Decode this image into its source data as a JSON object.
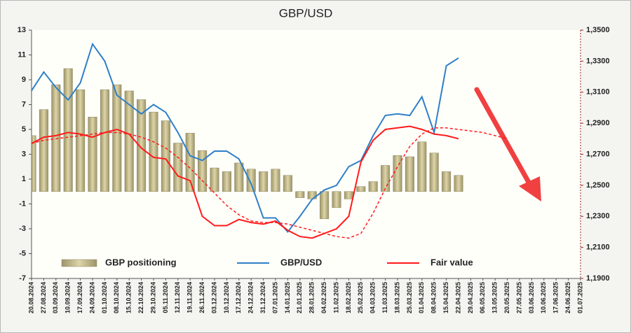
{
  "chart_data": {
    "type": "combo",
    "title": "GBP/USD",
    "categories": [
      "20.08.2024",
      "27.08.2024",
      "03.09.2024",
      "10.09.2024",
      "17.09.2024",
      "24.09.2024",
      "01.10.2024",
      "08.10.2024",
      "15.10.2024",
      "22.10.2024",
      "29.10.2024",
      "05.11.2024",
      "12.11.2024",
      "19.11.2024",
      "26.11.2024",
      "03.12.2024",
      "10.12.2024",
      "17.12.2024",
      "24.12.2024",
      "31.12.2024",
      "07.01.2025",
      "14.01.2025",
      "21.01.2025",
      "28.01.2025",
      "04.02.2025",
      "11.02.2025",
      "18.02.2025",
      "25.02.2025",
      "04.03.2025",
      "11.03.2025",
      "18.03.2025",
      "25.03.2025",
      "01.04.2025",
      "08.04.2025",
      "15.04.2025",
      "22.04.2025",
      "29.04.2025",
      "06.05.2025",
      "13.05.2025",
      "20.05.2025",
      "27.05.2025",
      "03.06.2025",
      "10.06.2025",
      "17.06.2025",
      "24.06.2025",
      "01.07.2025"
    ],
    "series": [
      {
        "name": "GBP positioning",
        "type": "bar",
        "axis": "y",
        "color": "#c2b98a",
        "values": [
          4.5,
          6.6,
          8.6,
          9.9,
          8.2,
          6.0,
          8.2,
          8.6,
          8.1,
          7.4,
          6.4,
          5.7,
          3.9,
          4.7,
          3.3,
          1.9,
          1.6,
          2.3,
          1.8,
          1.6,
          1.8,
          1.3,
          -0.5,
          -0.6,
          -2.2,
          -1.3,
          -0.6,
          0.4,
          0.8,
          2.1,
          2.9,
          2.8,
          4.0,
          3.1,
          1.6,
          1.3,
          null,
          null,
          null,
          null,
          null,
          null,
          null,
          null,
          null,
          null
        ]
      },
      {
        "name": "GBP/USD",
        "type": "line",
        "axis": "y2",
        "color": "#2f7fc8",
        "values": [
          1.311,
          1.323,
          1.313,
          1.305,
          1.316,
          1.341,
          1.33,
          1.308,
          1.302,
          1.296,
          1.302,
          1.297,
          1.284,
          1.269,
          1.266,
          1.272,
          1.272,
          1.267,
          1.251,
          1.229,
          1.229,
          1.22,
          1.23,
          1.241,
          1.247,
          1.25,
          1.262,
          1.266,
          1.282,
          1.295,
          1.296,
          1.295,
          1.307,
          1.284,
          1.327,
          1.332,
          null,
          null,
          null,
          null,
          null,
          null,
          null,
          null,
          null,
          null
        ]
      },
      {
        "name": "Fair value",
        "type": "line",
        "axis": "y2",
        "color": "#ff1a1a",
        "values": [
          1.277,
          1.281,
          1.282,
          1.284,
          1.283,
          1.281,
          1.284,
          1.286,
          1.283,
          1.274,
          1.268,
          1.267,
          1.256,
          1.253,
          1.23,
          1.224,
          1.224,
          1.228,
          1.226,
          1.225,
          1.227,
          1.221,
          1.217,
          1.216,
          1.219,
          1.222,
          1.23,
          1.265,
          1.279,
          1.286,
          1.287,
          1.288,
          1.286,
          1.283,
          1.282,
          1.28,
          null,
          null,
          null,
          null,
          null,
          null,
          null,
          null,
          null,
          null
        ]
      },
      {
        "type": "line",
        "axis": "y2",
        "color": "#ff1a1a",
        "dashed": true,
        "values": [
          1.277,
          1.279,
          1.28,
          1.281,
          1.282,
          1.283,
          1.284,
          1.284,
          1.283,
          1.281,
          1.278,
          1.274,
          1.268,
          1.261,
          1.253,
          1.245,
          1.237,
          1.231,
          1.227,
          1.226,
          1.226,
          1.225,
          1.223,
          1.221,
          1.219,
          1.217,
          1.216,
          1.219,
          1.232,
          1.248,
          1.262,
          1.275,
          1.283,
          1.287,
          1.287,
          1.286,
          1.285,
          1.284,
          1.282,
          1.28,
          null,
          null,
          null,
          null,
          null,
          null
        ]
      }
    ],
    "ylim": [
      -7,
      13
    ],
    "yticks": [
      -7,
      -5,
      -3,
      -1,
      1,
      3,
      5,
      7,
      9,
      11,
      13
    ],
    "y2lim": [
      1.19,
      1.35
    ],
    "y2ticks": [
      {
        "value": 1.19,
        "label": "1,1900"
      },
      {
        "value": 1.21,
        "label": "1,2100"
      },
      {
        "value": 1.23,
        "label": "1,2300"
      },
      {
        "value": 1.25,
        "label": "1,2500"
      },
      {
        "value": 1.27,
        "label": "1,2700"
      },
      {
        "value": 1.29,
        "label": "1,2900"
      },
      {
        "value": 1.31,
        "label": "1,3100"
      },
      {
        "value": 1.33,
        "label": "1,3300"
      },
      {
        "value": 1.35,
        "label": "1,3500"
      }
    ],
    "legend": "bottom"
  }
}
